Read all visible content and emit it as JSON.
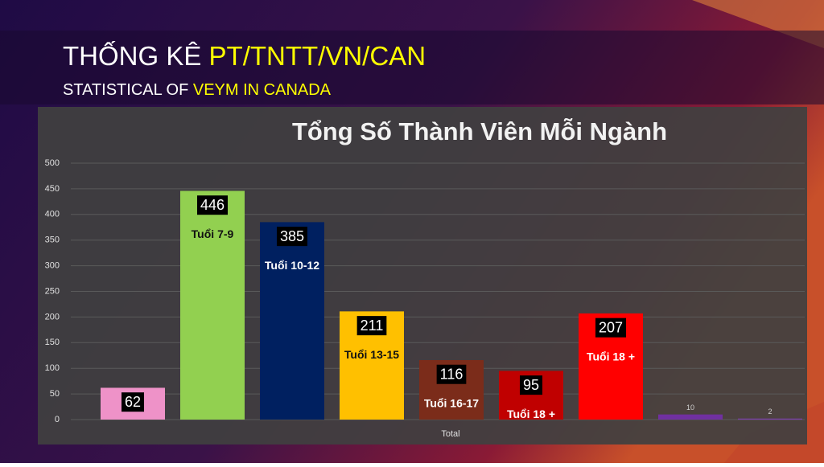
{
  "header": {
    "title_prefix": "THỐNG KÊ ",
    "title_highlight": "PT/TNTT/VN/CAN",
    "subtitle_prefix": "STATISTICAL OF ",
    "subtitle_highlight": "VEYM IN CANADA"
  },
  "chart_data": {
    "type": "bar",
    "title": "Tổng Số Thành Viên Mỗi Ngành",
    "categories": [
      "Total"
    ],
    "series": [
      {
        "name": null,
        "color": "#ee92c8",
        "values": [
          62
        ]
      },
      {
        "name": "Tuổi 7-9",
        "color": "#92d050",
        "values": [
          446
        ]
      },
      {
        "name": "Tuổi 10-12",
        "color": "#002060",
        "values": [
          385
        ]
      },
      {
        "name": "Tuổi 13-15",
        "color": "#ffc000",
        "values": [
          211
        ]
      },
      {
        "name": "Tuổi 16-17",
        "color": "#7b2c1a",
        "values": [
          116
        ]
      },
      {
        "name": "Tuổi 18 +",
        "color": "#c00000",
        "values": [
          95
        ]
      },
      {
        "name": "Tuổi 18 +",
        "color": "#ff0000",
        "values": [
          207
        ]
      },
      {
        "name": null,
        "color": "#7030a0",
        "values": [
          10
        ]
      },
      {
        "name": null,
        "color": "#7a3fa8",
        "values": [
          2
        ]
      }
    ],
    "ylim": [
      0,
      500
    ],
    "yticks": [
      0,
      50,
      100,
      150,
      200,
      250,
      300,
      350,
      400,
      450,
      500
    ],
    "grid": true
  }
}
